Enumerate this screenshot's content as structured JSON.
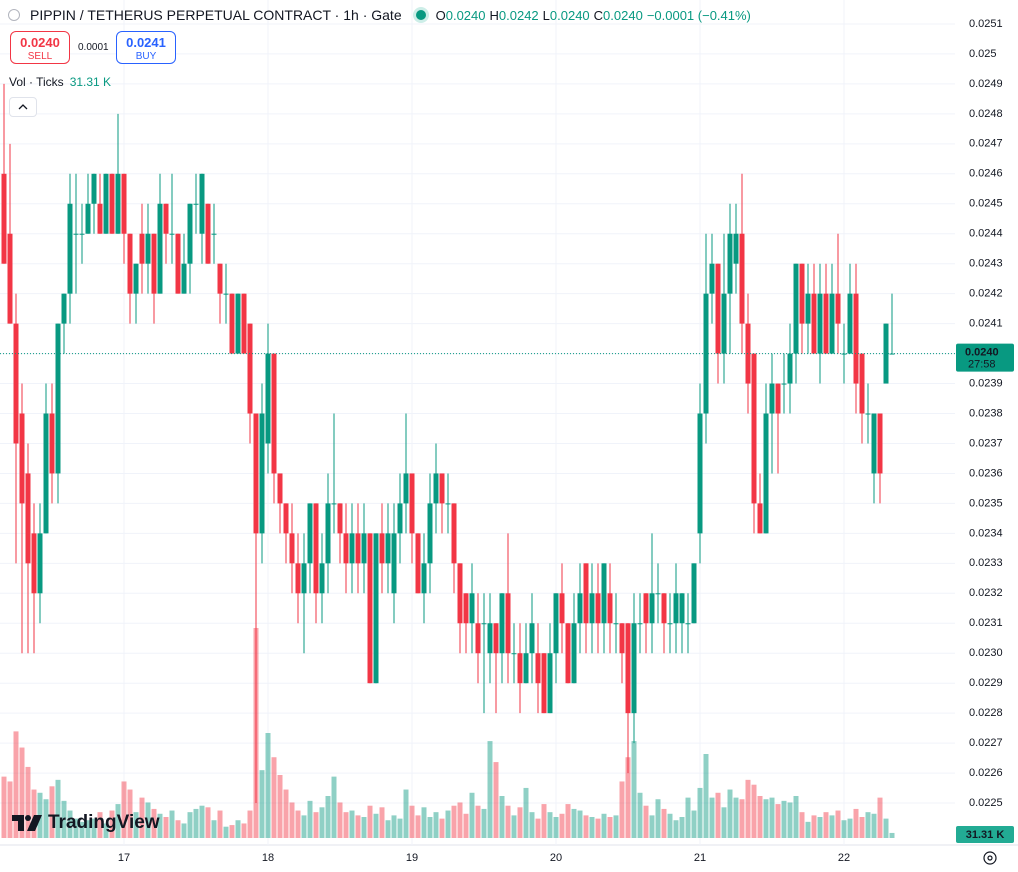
{
  "header": {
    "symbol": "PIPPIN / TETHERUS PERPETUAL CONTRACT · 1h · Gate",
    "ohlc": [
      {
        "label": "O",
        "value": "0.0240"
      },
      {
        "label": "H",
        "value": "0.0242"
      },
      {
        "label": "L",
        "value": "0.0240"
      },
      {
        "label": "C",
        "value": "0.0240"
      }
    ],
    "change": "−0.0001 (−0.41%)",
    "sell": {
      "price": "0.0240",
      "label": "SELL"
    },
    "spread": "0.0001",
    "buy": {
      "price": "0.0241",
      "label": "BUY"
    },
    "volume_legend": {
      "name": "Vol · Ticks",
      "value": "31.31 K"
    },
    "logo": "TradingView"
  },
  "chart_data": {
    "type": "candlestick",
    "categories": [
      null,
      null,
      null,
      null,
      null,
      null,
      null,
      null,
      null,
      null,
      null,
      null,
      null,
      null,
      null,
      null,
      null,
      null,
      null,
      null,
      "17",
      null,
      null,
      null,
      null,
      null,
      null,
      null,
      null,
      null,
      null,
      null,
      null,
      null,
      null,
      null,
      null,
      null,
      null,
      null,
      null,
      null,
      null,
      null,
      "18",
      null,
      null,
      null,
      null,
      null,
      null,
      null,
      null,
      null,
      null,
      null,
      null,
      null,
      null,
      null,
      null,
      null,
      null,
      null,
      null,
      null,
      null,
      null,
      "19",
      null,
      null,
      null,
      null,
      null,
      null,
      null,
      null,
      null,
      null,
      null,
      null,
      null,
      null,
      null,
      null,
      null,
      null,
      null,
      null,
      null,
      null,
      null,
      "20",
      null,
      null,
      null,
      null,
      null,
      null,
      null,
      null,
      null,
      null,
      null,
      null,
      null,
      null,
      null,
      null,
      null,
      null,
      null,
      null,
      null,
      null,
      null,
      "21",
      null,
      null,
      null,
      null,
      null,
      null,
      null,
      null,
      null,
      null,
      null,
      null,
      null,
      null,
      null,
      null,
      null,
      null,
      null,
      null,
      null,
      null,
      null,
      "22",
      null,
      null,
      null,
      null,
      null,
      null,
      null,
      null
    ],
    "open": [
      0.0246,
      0.0244,
      0.0241,
      0.0238,
      0.0236,
      0.0234,
      0.0232,
      0.0234,
      0.0238,
      0.0236,
      0.0241,
      0.0242,
      0.0244,
      0.0244,
      0.0244,
      0.0245,
      0.0245,
      0.0244,
      0.0246,
      0.0244,
      0.0246,
      0.0244,
      0.0242,
      0.0244,
      0.0243,
      0.0244,
      0.0242,
      0.0245,
      0.0244,
      0.0244,
      0.0242,
      0.0243,
      0.0245,
      0.0244,
      0.0245,
      0.0244,
      0.0243,
      0.0242,
      0.0242,
      0.024,
      0.0242,
      0.0241,
      0.0238,
      0.0234,
      0.0237,
      0.024,
      0.0236,
      0.0235,
      0.0234,
      0.0233,
      0.0232,
      0.0233,
      0.0235,
      0.0232,
      0.0233,
      0.0235,
      0.0235,
      0.0234,
      0.0233,
      0.0234,
      0.0233,
      0.0234,
      0.0229,
      0.0234,
      0.0233,
      0.0232,
      0.0234,
      0.0235,
      0.0236,
      0.0234,
      0.0232,
      0.0233,
      0.0235,
      0.0236,
      0.0235,
      0.0235,
      0.0233,
      0.0232,
      0.0231,
      0.0231,
      0.0231,
      0.023,
      0.0231,
      0.023,
      0.0232,
      0.023,
      0.023,
      0.0229,
      0.023,
      0.023,
      0.023,
      0.0228,
      0.023,
      0.0232,
      0.0231,
      0.0229,
      0.0231,
      0.0233,
      0.0231,
      0.0232,
      0.0231,
      0.0232,
      0.0231,
      0.0231,
      0.0231,
      0.0228,
      0.0231,
      0.0232,
      0.0231,
      0.0232,
      0.0232,
      0.0231,
      0.0231,
      0.0231,
      0.0231,
      0.0231,
      0.0234,
      0.0238,
      0.0242,
      0.0243,
      0.024,
      0.0242,
      0.0243,
      0.0244,
      0.0241,
      0.024,
      0.0235,
      0.0234,
      0.0238,
      0.0239,
      0.0239,
      0.0239,
      0.024,
      0.0243,
      0.0241,
      0.0242,
      0.024,
      0.0242,
      0.024,
      0.0242,
      0.024,
      0.024,
      0.0242,
      0.024,
      0.0238,
      0.0236,
      0.0238,
      0.0239,
      0.024
    ],
    "high": [
      0.0249,
      0.0247,
      0.0242,
      0.0239,
      0.0237,
      0.0235,
      0.0235,
      0.0239,
      0.0239,
      0.0241,
      0.0242,
      0.0246,
      0.0246,
      0.0245,
      0.0246,
      0.0246,
      0.0246,
      0.0246,
      0.0246,
      0.0248,
      0.0246,
      0.0244,
      0.0243,
      0.0245,
      0.0245,
      0.0244,
      0.0246,
      0.0245,
      0.0246,
      0.0244,
      0.0244,
      0.0245,
      0.0246,
      0.0246,
      0.0245,
      0.0245,
      0.0243,
      0.0243,
      0.0242,
      0.0242,
      0.0242,
      0.0241,
      0.0238,
      0.0239,
      0.0241,
      0.024,
      0.0236,
      0.0235,
      0.0235,
      0.0234,
      0.0234,
      0.0235,
      0.0235,
      0.0234,
      0.0236,
      0.0238,
      0.0235,
      0.0235,
      0.0235,
      0.0235,
      0.0235,
      0.0234,
      0.0234,
      0.0235,
      0.0235,
      0.0235,
      0.0236,
      0.0238,
      0.0236,
      0.0234,
      0.0234,
      0.0236,
      0.0237,
      0.0236,
      0.0236,
      0.0235,
      0.0233,
      0.0232,
      0.0233,
      0.0232,
      0.0232,
      0.0232,
      0.0231,
      0.0232,
      0.0234,
      0.0231,
      0.0231,
      0.0231,
      0.0232,
      0.0231,
      0.023,
      0.0231,
      0.0232,
      0.0233,
      0.0231,
      0.0232,
      0.0233,
      0.0233,
      0.0233,
      0.0233,
      0.0233,
      0.0233,
      0.0232,
      0.0231,
      0.0231,
      0.0232,
      0.0232,
      0.0232,
      0.0234,
      0.0233,
      0.0232,
      0.0232,
      0.0233,
      0.0232,
      0.0232,
      0.0233,
      0.0239,
      0.0244,
      0.0244,
      0.0243,
      0.0244,
      0.0245,
      0.0245,
      0.0246,
      0.0242,
      0.024,
      0.0236,
      0.0239,
      0.024,
      0.0239,
      0.024,
      0.0241,
      0.0243,
      0.0243,
      0.0243,
      0.0243,
      0.0243,
      0.0243,
      0.0243,
      0.0244,
      0.0241,
      0.0243,
      0.0243,
      0.024,
      0.0239,
      0.0238,
      0.0238,
      0.0241,
      0.0242
    ],
    "low": [
      0.0243,
      0.0241,
      0.0233,
      0.023,
      0.023,
      0.023,
      0.0231,
      0.0234,
      0.0235,
      0.0235,
      0.024,
      0.0241,
      0.0242,
      0.0243,
      0.0244,
      0.0244,
      0.0244,
      0.0244,
      0.0244,
      0.0244,
      0.0243,
      0.0241,
      0.0241,
      0.0242,
      0.0242,
      0.0241,
      0.0242,
      0.0243,
      0.0243,
      0.0242,
      0.0242,
      0.0242,
      0.0244,
      0.0243,
      0.0243,
      0.0243,
      0.0241,
      0.0241,
      0.024,
      0.024,
      0.024,
      0.0237,
      0.0225,
      0.0233,
      0.0236,
      0.0235,
      0.0234,
      0.0233,
      0.0232,
      0.0231,
      0.023,
      0.0232,
      0.0231,
      0.0231,
      0.0232,
      0.0234,
      0.0233,
      0.0232,
      0.0232,
      0.0232,
      0.0232,
      0.0229,
      0.0229,
      0.0232,
      0.0232,
      0.0231,
      0.0233,
      0.0234,
      0.0233,
      0.0232,
      0.0231,
      0.0232,
      0.0234,
      0.0234,
      0.0234,
      0.0232,
      0.023,
      0.023,
      0.023,
      0.0229,
      0.0228,
      0.0229,
      0.0228,
      0.0229,
      0.0229,
      0.0229,
      0.0228,
      0.0229,
      0.0229,
      0.0228,
      0.0228,
      0.0228,
      0.0229,
      0.023,
      0.0229,
      0.0229,
      0.023,
      0.023,
      0.023,
      0.023,
      0.023,
      0.023,
      0.023,
      0.0229,
      0.0226,
      0.0227,
      0.023,
      0.023,
      0.023,
      0.0231,
      0.023,
      0.023,
      0.023,
      0.023,
      0.023,
      0.0231,
      0.0233,
      0.0237,
      0.0241,
      0.0239,
      0.0239,
      0.024,
      0.0242,
      0.024,
      0.0238,
      0.0234,
      0.0234,
      0.0234,
      0.0236,
      0.0236,
      0.0238,
      0.0238,
      0.0239,
      0.024,
      0.024,
      0.024,
      0.0239,
      0.024,
      0.024,
      0.024,
      0.0239,
      0.024,
      0.0238,
      0.0237,
      0.0237,
      0.0235,
      0.0235,
      0.0239,
      0.024
    ],
    "close": [
      0.0243,
      0.0241,
      0.0237,
      0.0235,
      0.0233,
      0.0232,
      0.0234,
      0.0238,
      0.0236,
      0.0241,
      0.0242,
      0.0245,
      0.0244,
      0.0244,
      0.0245,
      0.0246,
      0.0244,
      0.0246,
      0.0244,
      0.0246,
      0.0244,
      0.0242,
      0.0243,
      0.0243,
      0.0244,
      0.0242,
      0.0245,
      0.0244,
      0.0244,
      0.0242,
      0.0243,
      0.0245,
      0.0245,
      0.0246,
      0.0243,
      0.0244,
      0.0242,
      0.0242,
      0.024,
      0.0242,
      0.024,
      0.0238,
      0.0234,
      0.0238,
      0.024,
      0.0236,
      0.0235,
      0.0234,
      0.0233,
      0.0232,
      0.0233,
      0.0235,
      0.0232,
      0.0233,
      0.0235,
      0.0235,
      0.0234,
      0.0233,
      0.0234,
      0.0233,
      0.0234,
      0.0229,
      0.0234,
      0.0233,
      0.0234,
      0.0234,
      0.0235,
      0.0236,
      0.0234,
      0.0232,
      0.0233,
      0.0235,
      0.0236,
      0.0235,
      0.0235,
      0.0233,
      0.0231,
      0.0231,
      0.0232,
      0.023,
      0.0231,
      0.0231,
      0.023,
      0.0232,
      0.023,
      0.023,
      0.0229,
      0.023,
      0.0231,
      0.0229,
      0.0228,
      0.023,
      0.0232,
      0.0231,
      0.0229,
      0.0231,
      0.0232,
      0.0231,
      0.0232,
      0.0231,
      0.0233,
      0.0231,
      0.0231,
      0.023,
      0.0228,
      0.0231,
      0.0231,
      0.0231,
      0.0232,
      0.0232,
      0.0231,
      0.0231,
      0.0232,
      0.0232,
      0.0231,
      0.0233,
      0.0238,
      0.0242,
      0.0243,
      0.024,
      0.0242,
      0.0244,
      0.0244,
      0.0241,
      0.0239,
      0.0235,
      0.0234,
      0.0238,
      0.0239,
      0.0238,
      0.0239,
      0.024,
      0.0243,
      0.0241,
      0.0242,
      0.024,
      0.0242,
      0.024,
      0.0242,
      0.0241,
      0.024,
      0.0242,
      0.0239,
      0.0238,
      0.0238,
      0.0238,
      0.0236,
      0.0241,
      0.024
    ],
    "volume": [
      380,
      350,
      660,
      560,
      440,
      300,
      280,
      240,
      320,
      360,
      230,
      170,
      120,
      100,
      110,
      120,
      160,
      90,
      170,
      210,
      350,
      300,
      160,
      250,
      220,
      180,
      150,
      130,
      170,
      110,
      90,
      160,
      180,
      200,
      190,
      110,
      170,
      70,
      80,
      110,
      90,
      170,
      1300,
      420,
      650,
      500,
      390,
      300,
      220,
      170,
      140,
      230,
      160,
      190,
      260,
      380,
      220,
      160,
      170,
      140,
      130,
      200,
      150,
      190,
      110,
      140,
      120,
      300,
      200,
      140,
      190,
      130,
      160,
      120,
      170,
      200,
      220,
      150,
      280,
      200,
      180,
      600,
      470,
      260,
      200,
      140,
      190,
      310,
      160,
      120,
      210,
      160,
      130,
      150,
      210,
      180,
      170,
      140,
      130,
      120,
      150,
      130,
      140,
      350,
      500,
      600,
      280,
      200,
      140,
      240,
      180,
      150,
      110,
      130,
      250,
      170,
      310,
      520,
      250,
      280,
      190,
      300,
      250,
      240,
      360,
      330,
      260,
      240,
      250,
      210,
      230,
      220,
      260,
      160,
      100,
      140,
      130,
      160,
      140,
      170,
      110,
      120,
      180,
      130,
      160,
      150,
      250,
      120,
      31.31
    ],
    "volume_value_label": "31.31 K",
    "up_color": "#089981",
    "down_color": "#f23645",
    "ylim": [
      0.02236,
      0.02518
    ],
    "yticks": [
      0.0251,
      0.025,
      0.0249,
      0.0248,
      0.0247,
      0.0246,
      0.0245,
      0.0244,
      0.0243,
      0.0242,
      0.0241,
      {
        "value": 0.024,
        "label": "0.0240"
      },
      0.0239,
      0.0238,
      0.0237,
      0.0236,
      0.0235,
      0.0234,
      0.0233,
      0.0232,
      0.0231,
      {
        "value": 0.023,
        "label": "0.0230"
      },
      0.0229,
      0.0228,
      0.0227,
      0.0226,
      0.0225
    ],
    "last_price_label": "0.0240",
    "countdown": "27:58",
    "grid": true
  }
}
